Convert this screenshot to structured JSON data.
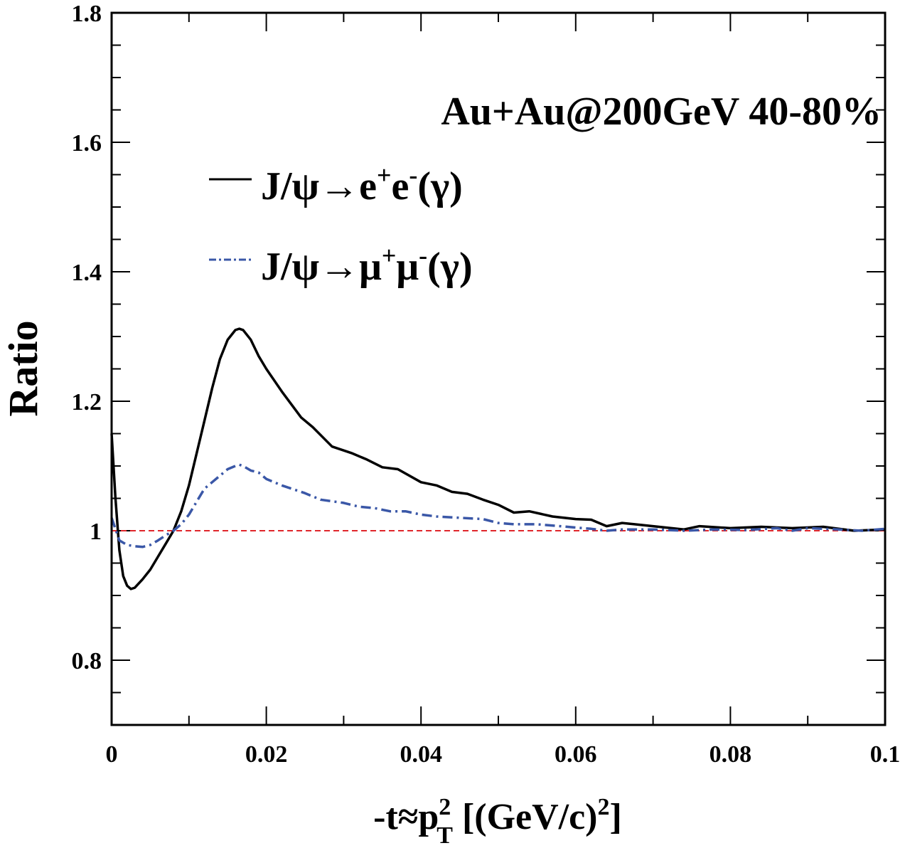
{
  "chart_data": {
    "type": "line",
    "title": "Au+Au@200GeV 40-80%",
    "xlabel": "-t≈p_T^2 [(GeV/c)^2]",
    "xlabel_parts": {
      "main": "-t≈p",
      "sup": "2",
      "sub": "T",
      "rest": " [(GeV/c)",
      "sup2": "2",
      "end": "]"
    },
    "ylabel": "Ratio",
    "xlim": [
      0,
      0.1
    ],
    "ylim": [
      0.7,
      1.8
    ],
    "xticks": [
      "0",
      "0.02",
      "0.04",
      "0.06",
      "0.08",
      "0.1"
    ],
    "xtick_values": [
      0,
      0.02,
      0.04,
      0.06,
      0.08,
      0.1
    ],
    "yticks": [
      "0.8",
      "1",
      "1.2",
      "1.4",
      "1.6",
      "1.8"
    ],
    "ytick_values": [
      0.8,
      1.0,
      1.2,
      1.4,
      1.6,
      1.8
    ],
    "reference_line": {
      "y": 1.0,
      "color": "#e0262b",
      "style": "dashed"
    },
    "legend_placement": "top-right",
    "series": [
      {
        "name": "J/ψ→e+e-(γ)",
        "legend": {
          "main": "J/ψ→e",
          "s1": "+",
          "mid": "e",
          "s2": "-",
          "end": "(γ)"
        },
        "color": "#000000",
        "style": "solid",
        "x": [
          0,
          0.0005,
          0.001,
          0.0015,
          0.002,
          0.0025,
          0.003,
          0.004,
          0.005,
          0.006,
          0.007,
          0.008,
          0.009,
          0.01,
          0.011,
          0.012,
          0.013,
          0.014,
          0.015,
          0.016,
          0.0165,
          0.017,
          0.018,
          0.019,
          0.02,
          0.022,
          0.0245,
          0.026,
          0.0285,
          0.031,
          0.033,
          0.035,
          0.037,
          0.04,
          0.042,
          0.044,
          0.046,
          0.048,
          0.05,
          0.052,
          0.054,
          0.057,
          0.06,
          0.062,
          0.064,
          0.066,
          0.07,
          0.074,
          0.076,
          0.08,
          0.084,
          0.088,
          0.092,
          0.096,
          0.1
        ],
        "y": [
          1.15,
          1.05,
          0.97,
          0.93,
          0.915,
          0.91,
          0.912,
          0.925,
          0.94,
          0.96,
          0.98,
          1.0,
          1.03,
          1.07,
          1.12,
          1.17,
          1.22,
          1.265,
          1.295,
          1.31,
          1.312,
          1.31,
          1.295,
          1.27,
          1.25,
          1.215,
          1.175,
          1.16,
          1.13,
          1.12,
          1.11,
          1.098,
          1.095,
          1.075,
          1.07,
          1.06,
          1.057,
          1.048,
          1.04,
          1.028,
          1.03,
          1.022,
          1.018,
          1.017,
          1.007,
          1.012,
          1.007,
          1.002,
          1.007,
          1.004,
          1.006,
          1.004,
          1.006,
          1.0,
          1.002
        ]
      },
      {
        "name": "J/ψ→μ+μ-(γ)",
        "legend": {
          "main": "J/ψ→μ",
          "s1": "+",
          "mid": "μ",
          "s2": "-",
          "end": "(γ)"
        },
        "color": "#3a57a7",
        "style": "dashdot",
        "x": [
          0,
          0.001,
          0.002,
          0.003,
          0.004,
          0.005,
          0.006,
          0.007,
          0.008,
          0.009,
          0.01,
          0.011,
          0.012,
          0.013,
          0.014,
          0.015,
          0.016,
          0.0165,
          0.017,
          0.018,
          0.019,
          0.02,
          0.022,
          0.025,
          0.027,
          0.03,
          0.032,
          0.034,
          0.036,
          0.038,
          0.04,
          0.042,
          0.045,
          0.048,
          0.05,
          0.052,
          0.055,
          0.058,
          0.06,
          0.062,
          0.064,
          0.066,
          0.07,
          0.074,
          0.078,
          0.082,
          0.086,
          0.088,
          0.09,
          0.094,
          0.097,
          0.1
        ],
        "y": [
          1.02,
          0.985,
          0.978,
          0.976,
          0.975,
          0.978,
          0.985,
          0.993,
          1.0,
          1.01,
          1.025,
          1.045,
          1.065,
          1.075,
          1.085,
          1.095,
          1.1,
          1.102,
          1.1,
          1.093,
          1.09,
          1.08,
          1.07,
          1.058,
          1.048,
          1.043,
          1.037,
          1.035,
          1.03,
          1.03,
          1.025,
          1.022,
          1.02,
          1.018,
          1.012,
          1.01,
          1.01,
          1.007,
          1.005,
          1.003,
          1.0,
          1.002,
          1.002,
          1.0,
          1.002,
          1.001,
          1.004,
          1.0,
          1.004,
          1.002,
          1.0,
          1.003
        ]
      }
    ]
  }
}
